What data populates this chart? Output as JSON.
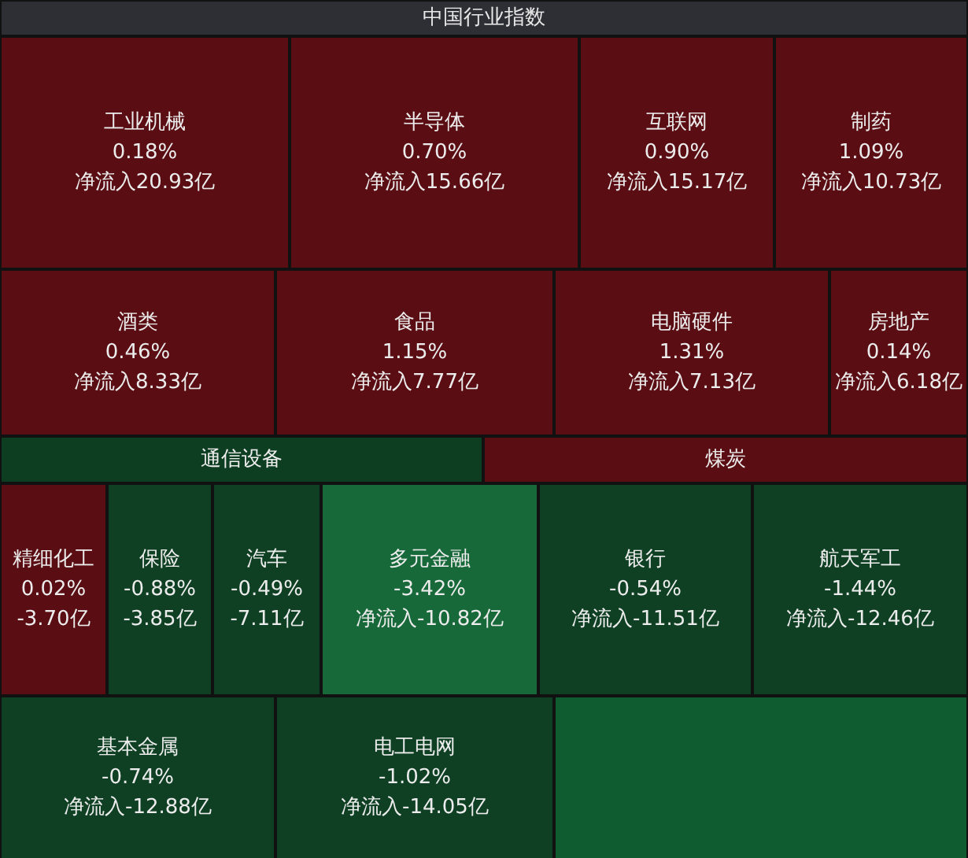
{
  "chart_data": {
    "type": "other",
    "title": "中国行业指数",
    "categories": [
      "工业机械",
      "半导体",
      "互联网",
      "制药",
      "酒类",
      "食品",
      "电脑硬件",
      "房地产",
      "通信设备",
      "煤炭",
      "精细化工",
      "保险",
      "汽车",
      "多元金融",
      "银行",
      "航天军工",
      "基本金属",
      "电工电网",
      null
    ],
    "series": [
      {
        "colors": [
          "#5a0e13",
          "#5a0e13",
          "#5a0e13",
          "#5a0e13",
          "#5a0e13",
          "#5a0e13",
          "#5a0e13",
          "#5a0e13",
          "#0e3e21",
          "#5a0e13",
          "#5a0e13",
          "#0f4024",
          "#0f4024",
          "#17693a",
          "#0f4024",
          "#0f4024",
          "#0f4024",
          "#0f4024",
          "#0e5c2f"
        ],
        "values": [
          0.18,
          0.7,
          0.9,
          1.09,
          0.46,
          1.15,
          1.31,
          0.14,
          null,
          null,
          0.02,
          -0.88,
          -0.49,
          -3.42,
          -0.54,
          -1.44,
          -0.74,
          -1.02,
          null
        ],
        "value_labels": [
          "0.18%",
          "0.70%",
          "0.90%",
          "1.09%",
          "0.46%",
          "1.15%",
          "1.31%",
          "0.14%",
          null,
          null,
          "0.02%",
          "-0.88%",
          "-0.49%",
          "-3.42%",
          "-0.54%",
          "-1.44%",
          "-0.74%",
          "-1.02%",
          null
        ]
      },
      {
        "values": [
          20.93,
          15.66,
          15.17,
          10.73,
          8.33,
          7.77,
          7.13,
          6.18,
          null,
          null,
          -3.7,
          -3.85,
          -7.11,
          -10.82,
          -11.51,
          -12.46,
          -12.88,
          -14.05,
          null
        ],
        "value_labels": [
          "净流入20.93亿",
          "净流入15.66亿",
          "净流入15.17亿",
          "净流入10.73亿",
          "净流入8.33亿",
          "净流入7.77亿",
          "净流入7.13亿",
          "净流入6.18亿",
          null,
          null,
          "-3.70亿",
          "-3.85亿",
          "-7.11亿",
          "净流入-10.82亿",
          "净流入-11.51亿",
          "净流入-12.46亿",
          "净流入-12.88亿",
          "净流入-14.05亿",
          null
        ]
      }
    ]
  }
}
